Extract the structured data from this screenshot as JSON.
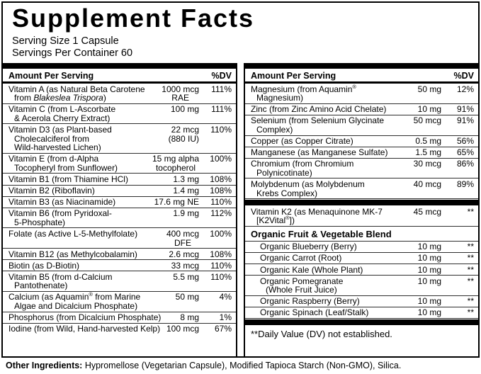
{
  "colors": {
    "text": "#000000",
    "background": "#ffffff",
    "bar": "#000000",
    "separator": "#2e2e2e"
  },
  "header": {
    "title": "Supplement Facts",
    "serving_size": "Serving Size 1 Capsule",
    "servings_per_container": "Servings Per Container 60"
  },
  "columns": {
    "left": {
      "header": {
        "amount_label": "Amount Per Serving",
        "dv_label": "%DV"
      },
      "rows": [
        {
          "type": "nutrient",
          "name_lines": [
            "Vitamin A (as Natural Beta Carotene",
            "from {i}Blakeslea Trispora{/i})"
          ],
          "amount_lines": [
            "1000 mcg",
            "RAE"
          ],
          "dv": "111%"
        },
        {
          "type": "nutrient",
          "name_lines": [
            "Vitamin C (from L-Ascorbate",
            "& Acerola Cherry Extract)"
          ],
          "amount_lines": [
            "100 mg"
          ],
          "dv": "111%"
        },
        {
          "type": "nutrient",
          "name_lines": [
            "Vitamin D3 (as Plant-based",
            "Cholecalciferol from",
            "Wild-harvested Lichen)"
          ],
          "amount_lines": [
            "22 mcg",
            "(880 IU)"
          ],
          "dv": "110%"
        },
        {
          "type": "nutrient",
          "name_lines": [
            "Vitamin E (from d-Alpha",
            "Tocopheryl from Sunflower)"
          ],
          "amount_lines": [
            "15 mg alpha",
            "tocopherol"
          ],
          "dv": "100%"
        },
        {
          "type": "nutrient",
          "name_lines": [
            "Vitamin B1 (from Thiamine HCl)"
          ],
          "amount_lines": [
            "1.3 mg"
          ],
          "dv": "108%"
        },
        {
          "type": "nutrient",
          "name_lines": [
            "Vitamin B2 (Riboflavin)"
          ],
          "amount_lines": [
            "1.4 mg"
          ],
          "dv": "108%"
        },
        {
          "type": "nutrient",
          "name_lines": [
            "Vitamin B3 (as Niacinamide)"
          ],
          "amount_lines": [
            "17.6 mg NE"
          ],
          "dv": "110%"
        },
        {
          "type": "nutrient",
          "name_lines": [
            "Vitamin B6 (from Pyridoxal-",
            "5-Phosphate)"
          ],
          "amount_lines": [
            "1.9 mg"
          ],
          "dv": "112%"
        },
        {
          "type": "nutrient",
          "name_lines": [
            "Folate (as Active L-5-Methylfolate)"
          ],
          "amount_lines": [
            "400 mcg",
            "DFE"
          ],
          "dv": "100%"
        },
        {
          "type": "nutrient",
          "name_lines": [
            "Vitamin B12 (as Methylcobalamin)"
          ],
          "amount_lines": [
            "2.6 mcg"
          ],
          "dv": "108%"
        },
        {
          "type": "nutrient",
          "name_lines": [
            "Biotin (as D-Biotin)"
          ],
          "amount_lines": [
            "33 mcg"
          ],
          "dv": "110%"
        },
        {
          "type": "nutrient",
          "name_lines": [
            "Vitamin B5 (from d-Calcium",
            "Pantothenate)"
          ],
          "amount_lines": [
            "5.5 mg"
          ],
          "dv": "110%"
        },
        {
          "type": "nutrient",
          "name_lines": [
            "Calcium (as Aquamin® from Marine",
            "Algae and Dicalcium Phosphate)"
          ],
          "amount_lines": [
            "50 mg"
          ],
          "dv": "4%"
        },
        {
          "type": "nutrient",
          "name_lines": [
            "Phosphorus (from Dicalcium Phosphate)"
          ],
          "amount_lines": [
            "8 mg"
          ],
          "dv": "1%"
        },
        {
          "type": "nutrient",
          "name_lines": [
            "Iodine (from Wild, Hand-harvested Kelp)"
          ],
          "amount_lines": [
            "100 mcg"
          ],
          "dv": "67%"
        }
      ]
    },
    "right": {
      "header": {
        "amount_label": "Amount Per Serving",
        "dv_label": "%DV"
      },
      "rows": [
        {
          "type": "nutrient",
          "name_lines": [
            "Magnesium (from Aquamin®",
            "Magnesium)"
          ],
          "amount_lines": [
            "50 mg"
          ],
          "dv": "12%"
        },
        {
          "type": "nutrient",
          "name_lines": [
            "Zinc (from Zinc Amino Acid Chelate)"
          ],
          "amount_lines": [
            "10 mg"
          ],
          "dv": "91%"
        },
        {
          "type": "nutrient",
          "name_lines": [
            "Selenium (from Selenium Glycinate",
            "Complex)"
          ],
          "amount_lines": [
            "50 mcg"
          ],
          "dv": "91%"
        },
        {
          "type": "nutrient",
          "name_lines": [
            "Copper (as Copper Citrate)"
          ],
          "amount_lines": [
            "0.5 mg"
          ],
          "dv": "56%"
        },
        {
          "type": "nutrient",
          "name_lines": [
            "Manganese (as Manganese Sulfate)"
          ],
          "amount_lines": [
            "1.5 mg"
          ],
          "dv": "65%"
        },
        {
          "type": "nutrient",
          "name_lines": [
            "Chromium (from Chromium",
            "Polynicotinate)"
          ],
          "amount_lines": [
            "30 mcg"
          ],
          "dv": "86%"
        },
        {
          "type": "nutrient",
          "name_lines": [
            "Molybdenum (as Molybdenum",
            "Krebs Complex)"
          ],
          "amount_lines": [
            "40 mcg"
          ],
          "dv": "89%"
        },
        {
          "type": "divider"
        },
        {
          "type": "nutrient",
          "name_lines": [
            "Vitamin K2 (as Menaquinone MK-7",
            "[K2Vital®])"
          ],
          "amount_lines": [
            "45 mcg"
          ],
          "dv": "**"
        },
        {
          "type": "section_header",
          "label": "Organic Fruit & Vegetable Blend"
        },
        {
          "type": "nutrient",
          "indent": true,
          "name_lines": [
            "Organic Blueberry (Berry)"
          ],
          "amount_lines": [
            "10 mg"
          ],
          "dv": "**"
        },
        {
          "type": "nutrient",
          "indent": true,
          "name_lines": [
            "Organic Carrot (Root)"
          ],
          "amount_lines": [
            "10 mg"
          ],
          "dv": "**"
        },
        {
          "type": "nutrient",
          "indent": true,
          "name_lines": [
            "Organic Kale (Whole Plant)"
          ],
          "amount_lines": [
            "10 mg"
          ],
          "dv": "**"
        },
        {
          "type": "nutrient",
          "indent": true,
          "name_lines": [
            "Organic Pomegranate",
            "(Whole Fruit Juice)"
          ],
          "amount_lines": [
            "10 mg"
          ],
          "dv": "**"
        },
        {
          "type": "nutrient",
          "indent": true,
          "name_lines": [
            "Organic Raspberry (Berry)"
          ],
          "amount_lines": [
            "10 mg"
          ],
          "dv": "**"
        },
        {
          "type": "nutrient",
          "indent": true,
          "name_lines": [
            "Organic Spinach (Leaf/Stalk)"
          ],
          "amount_lines": [
            "10 mg"
          ],
          "dv": "**"
        },
        {
          "type": "divider"
        },
        {
          "type": "footnote",
          "text": "**Daily Value (DV) not established."
        }
      ]
    }
  },
  "other_ingredients": {
    "label": "Other Ingredients:",
    "text": " Hypromellose (Vegetarian Capsule), Modified Tapioca Starch (Non-GMO), Silica."
  }
}
